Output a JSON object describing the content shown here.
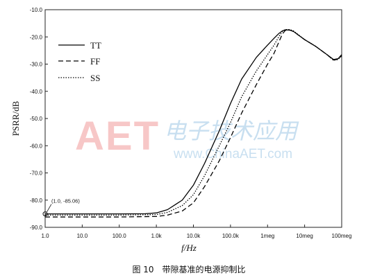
{
  "chart_data": {
    "type": "line",
    "title": "",
    "xlabel": "f/Hz",
    "ylabel": "PSRR/dB",
    "xscale": "log",
    "xlim": [
      1,
      100000000
    ],
    "ylim": [
      -90,
      -10
    ],
    "x_ticks": [
      1,
      10,
      100,
      1000,
      10000,
      100000,
      1000000,
      10000000,
      100000000
    ],
    "x_tick_labels": [
      "1.0",
      "10.0",
      "100.0",
      "1.0k",
      "10.0k",
      "100.0k",
      "1meg",
      "10meg",
      "100meg"
    ],
    "y_ticks": [
      -10,
      -20,
      -30,
      -40,
      -50,
      -60,
      -70,
      -80,
      -90
    ],
    "y_tick_labels": [
      "-10.0",
      "-20.0",
      "-30.0",
      "-40.0",
      "-50.0",
      "-60.0",
      "-70.0",
      "-80.0",
      "-90.0"
    ],
    "grid": false,
    "legend_position": "top-left",
    "series": [
      {
        "name": "TT",
        "line_style": "solid",
        "color": "#000000",
        "x": [
          1,
          10,
          100,
          500,
          1000,
          2000,
          5000,
          10000,
          20000,
          50000,
          100000,
          200000,
          500000,
          1000000,
          1500000,
          2000000,
          2500000,
          3000000,
          4000000,
          5000000,
          10000000,
          20000000,
          40000000,
          60000000,
          80000000,
          100000000
        ],
        "y": [
          -85.06,
          -85.06,
          -85.06,
          -85,
          -84.7,
          -83.5,
          -80,
          -74.5,
          -66.5,
          -54.5,
          -44.5,
          -35.5,
          -27.5,
          -23,
          -20.5,
          -18.8,
          -17.8,
          -17.4,
          -17.5,
          -18,
          -21,
          -23.5,
          -26.5,
          -28.3,
          -28,
          -26.5
        ]
      },
      {
        "name": "FF",
        "line_style": "dashed",
        "color": "#000000",
        "x": [
          1,
          10,
          100,
          1000,
          2000,
          5000,
          10000,
          20000,
          50000,
          100000,
          200000,
          500000,
          1000000,
          1500000,
          2000000,
          2500000,
          3000000,
          4000000,
          5000000,
          10000000,
          20000000,
          40000000,
          60000000,
          80000000,
          100000000
        ],
        "y": [
          -86.2,
          -86.2,
          -86.2,
          -86,
          -85.5,
          -84,
          -81,
          -75,
          -65.5,
          -57,
          -48,
          -37.5,
          -30,
          -26,
          -22,
          -19,
          -17.6,
          -17.5,
          -18,
          -21,
          -23.5,
          -26.5,
          -28.5,
          -28.2,
          -26.8
        ]
      },
      {
        "name": "SS",
        "line_style": "dotted",
        "color": "#000000",
        "x": [
          1,
          10,
          100,
          1000,
          2000,
          5000,
          10000,
          20000,
          50000,
          100000,
          200000,
          500000,
          1000000,
          1500000,
          2000000,
          2500000,
          3000000,
          4000000,
          5000000,
          10000000,
          20000000,
          40000000,
          60000000,
          80000000,
          100000000
        ],
        "y": [
          -85.5,
          -85.5,
          -85.5,
          -85.3,
          -84.5,
          -82,
          -78,
          -71,
          -60,
          -51.5,
          -42,
          -32.5,
          -26.5,
          -23,
          -20,
          -18,
          -17.3,
          -17.3,
          -17.8,
          -21,
          -23.5,
          -26.5,
          -28.6,
          -28.3,
          -27
        ]
      }
    ],
    "annotations": [
      {
        "text": "(1.0, -85.06)",
        "x": 1,
        "y": -85.06
      }
    ]
  },
  "caption": "图 10　带隙基准的电源抑制比",
  "watermark": {
    "logo": "AET",
    "cn_text": "电子技术应用",
    "url": "www.ChinaAET.com"
  }
}
